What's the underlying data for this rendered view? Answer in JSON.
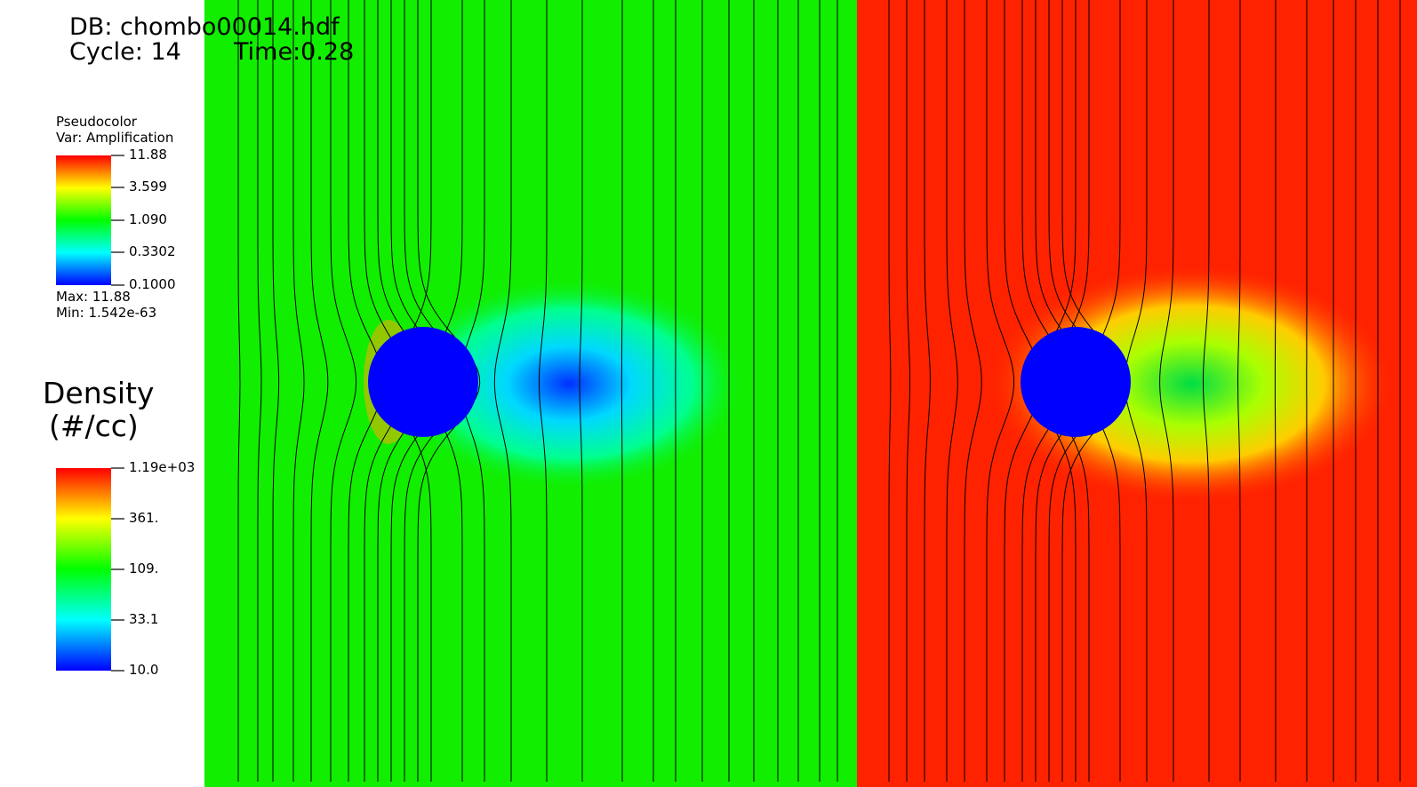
{
  "header": {
    "db": "DB: chombo00014.hdf",
    "cycle": "Cycle: 14",
    "time": "Time:0.28"
  },
  "legend_amplification": {
    "plot_type": "Pseudocolor",
    "var": "Var: Amplification",
    "ticks": [
      "11.88",
      "3.599",
      "1.090",
      "0.3302",
      "0.1000"
    ],
    "max": "Max:  11.88",
    "min": "Min:  1.542e-63",
    "scale": "log"
  },
  "legend_density": {
    "title_line1": "Density",
    "title_line2": "(#/cc)",
    "ticks": [
      "1.19e+03",
      "361.",
      "109.",
      "33.1",
      "10.0"
    ],
    "scale": "log"
  },
  "colors": {
    "left_panel_background": "#11ee00",
    "right_panel_background": "#ff2200",
    "obstacle": "#0000ff",
    "field_lines": "#000000",
    "colormap": [
      "#0000ff",
      "#00ffff",
      "#00ff00",
      "#ffff00",
      "#ff0000"
    ]
  },
  "panels": [
    {
      "name": "amplification-panel",
      "variable": "Amplification"
    },
    {
      "name": "density-panel",
      "variable": "Density"
    }
  ]
}
